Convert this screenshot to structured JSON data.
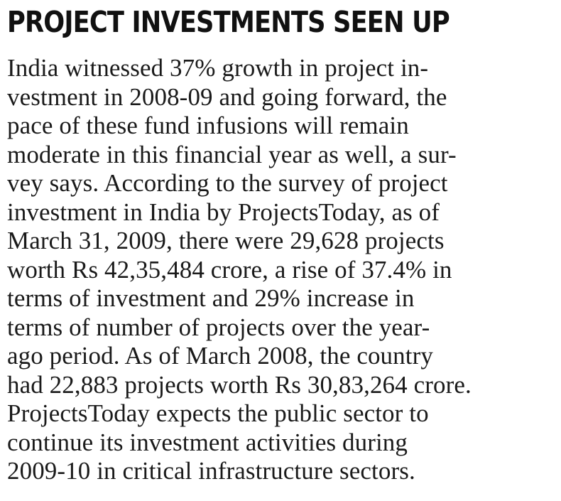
{
  "headline": "PROJECT INVESTMENTS SEEN UP",
  "lines": [
    "India witnessed 37% growth in project in-",
    "vestment in 2008-09 and going forward, the",
    "pace of  these fund infusions will remain",
    "moderate in this financial year as well, a sur-",
    "vey says. According to the survey of project",
    "investment in India by ProjectsToday, as of",
    "March 31, 2009, there were 29,628 projects",
    "worth Rs 42,35,484 crore, a rise of 37.4% in",
    "terms of investment and 29% increase in",
    "terms of number of projects over the year-",
    "ago period. As of March 2008, the country",
    "had 22,883 projects worth Rs 30,83,264 crore.",
    "ProjectsToday expects the public sector to",
    "continue its investment activities during",
    "2009-10 in critical infrastructure sectors."
  ]
}
